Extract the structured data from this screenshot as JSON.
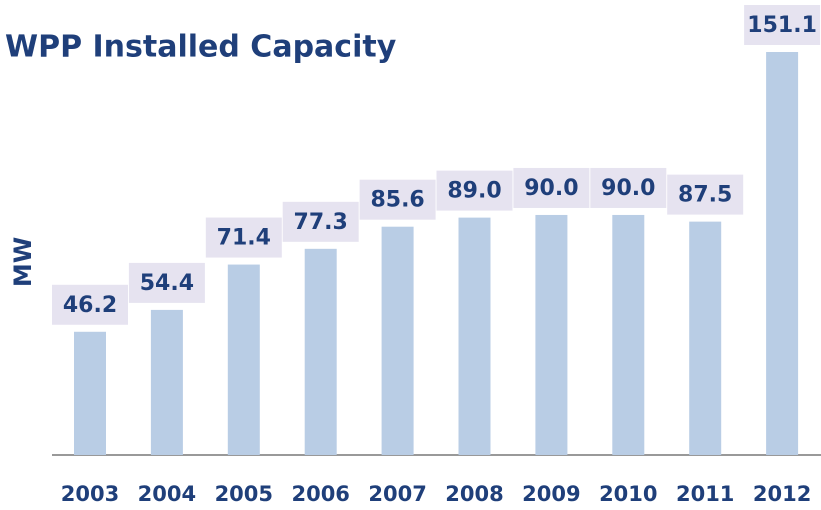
{
  "chart_data": {
    "type": "bar",
    "title": "WPP Installed Capacity",
    "y_label": "MW",
    "categories": [
      "2003",
      "2004",
      "2005",
      "2006",
      "2007",
      "2008",
      "2009",
      "2010",
      "2011",
      "2012"
    ],
    "values": [
      46.2,
      54.4,
      71.4,
      77.3,
      85.6,
      89.0,
      90.0,
      90.0,
      87.5,
      151.1
    ],
    "value_labels": [
      "46.2",
      "54.4",
      "71.4",
      "77.3",
      "85.6",
      "89.0",
      "90.0",
      "90.0",
      "87.5",
      "151.1"
    ],
    "color": "#b9cde5"
  }
}
